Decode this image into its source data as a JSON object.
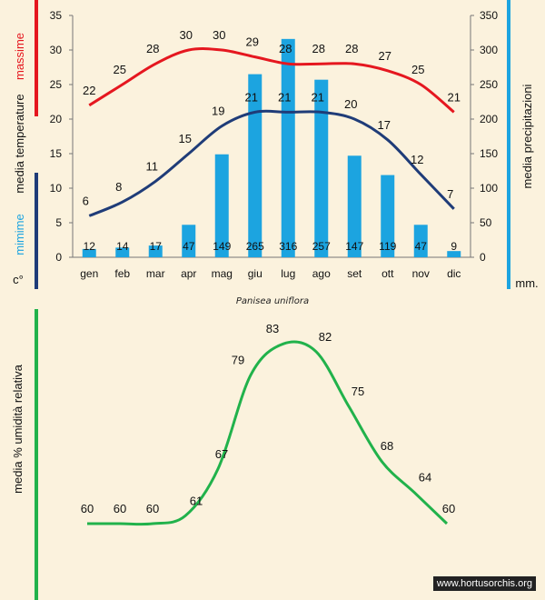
{
  "caption": "Panisea uniflora",
  "watermark": "www.hortusorchis.org",
  "colors": {
    "max_line": "#e5171f",
    "min_line": "#1f3c78",
    "bars": "#1ca4e0",
    "humidity_line": "#21b24b",
    "background": "#fbf2dd"
  },
  "chart_data": [
    {
      "type": "bar",
      "categories": [
        "gen",
        "feb",
        "mar",
        "apr",
        "mag",
        "giu",
        "lug",
        "ago",
        "set",
        "ott",
        "nov",
        "dic"
      ],
      "series": [
        {
          "name": "massime",
          "type": "line",
          "axis": "left",
          "values": [
            22,
            25,
            28,
            30,
            30,
            29,
            28,
            28,
            28,
            27,
            25,
            21
          ]
        },
        {
          "name": "mimime",
          "type": "line",
          "axis": "left",
          "values": [
            6,
            8,
            11,
            15,
            19,
            21,
            21,
            21,
            20,
            17,
            12,
            7
          ]
        },
        {
          "type": "bar",
          "axis": "right",
          "values": [
            12,
            14,
            17,
            47,
            149,
            265,
            316,
            257,
            147,
            119,
            47,
            9
          ]
        }
      ],
      "left_axis": {
        "label_top": "massime",
        "label_middle": "media  temperature",
        "label_bottom": "mimime",
        "unit": "c°",
        "ylim": [
          0,
          35
        ],
        "ticks": [
          0,
          5,
          10,
          15,
          20,
          25,
          30,
          35
        ]
      },
      "right_axis": {
        "label": "media  precipitazioni",
        "unit": "mm.",
        "ylim": [
          0,
          350
        ],
        "ticks": [
          0,
          50,
          100,
          150,
          200,
          250,
          300,
          350
        ]
      },
      "grid": false
    },
    {
      "type": "line",
      "categories": [
        "gen",
        "feb",
        "mar",
        "apr",
        "mag",
        "giu",
        "lug",
        "ago",
        "set",
        "ott",
        "nov",
        "dic"
      ],
      "series": [
        {
          "values": [
            60,
            60,
            60,
            61,
            67,
            79,
            83,
            82,
            75,
            68,
            64,
            60
          ]
        }
      ],
      "ylabel": "media %  umidità relativa",
      "show_x_labels": false,
      "grid": false
    }
  ]
}
